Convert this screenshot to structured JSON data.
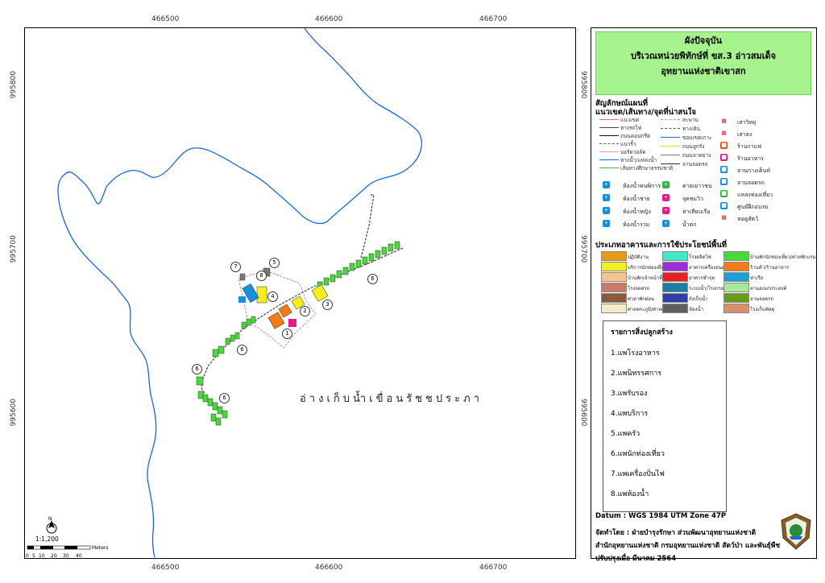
{
  "title": {
    "line1": "ผังปัจจุบัน",
    "line2": "บริเวณหน่วยพิทักษ์ที่ ขส.3 อ่าวสมเด็จ",
    "line3": "อุทยานแห่งชาติเขาสก"
  },
  "coords": {
    "top": [
      "466500",
      "466600",
      "466700"
    ],
    "bottom": [
      "466500",
      "466600",
      "466700"
    ],
    "left": [
      "995800",
      "995700",
      "995600"
    ],
    "right": [
      "995800",
      "995700",
      "995600"
    ]
  },
  "legend": {
    "heading": "สัญลักษณ์แผนที่",
    "subheading": "แนวเขต/เส้นทาง/จุดที่น่าสนใจ",
    "lines_left": [
      {
        "label": "แนวเขต",
        "color": "#d9707a"
      },
      {
        "label": "ทางรถไฟ",
        "color": "#444444"
      },
      {
        "label": "ถนนคอนกรีต",
        "color": "#111111"
      },
      {
        "label": "แนวรั้ว",
        "color": "#555555"
      },
      {
        "label": "บอร์ดวอล์ค",
        "color": "#e3a0b0"
      },
      {
        "label": "ทางน้ำ/แหล่งน้ำ",
        "color": "#1a66d9"
      },
      {
        "label": "เส้นทางศึกษาธรรมชาติ",
        "color": "#39b54a"
      }
    ],
    "lines_right": [
      {
        "label": "สะพาน",
        "color": "#d98fa8"
      },
      {
        "label": "ทางเดิน",
        "color": "#555555"
      },
      {
        "label": "ขอบเขตเกาะ",
        "color": "#1a66d9"
      },
      {
        "label": "ถนนลูกรัง",
        "color": "#f2d21b"
      },
      {
        "label": "ถนนลาดยาง",
        "color": "#777777"
      },
      {
        "label": "ลานจอดรถ",
        "color": "#333333"
      }
    ],
    "poi_right_top": [
      {
        "label": "เสาวิทยุ",
        "icon": "radio-tower-icon",
        "color": "#ffffff"
      },
      {
        "label": "เสาธง",
        "icon": "flag-icon",
        "color": "#ffffff"
      },
      {
        "label": "ร้านกาแฟ",
        "icon": "coffee-icon",
        "color": "#e8541c"
      },
      {
        "label": "ร้านอาหาร",
        "icon": "restaurant-icon",
        "color": "#e8198b"
      },
      {
        "label": "ลานกางเต็นท์",
        "icon": "tent-icon",
        "color": "#1a8fd9"
      },
      {
        "label": "ลานจอดรถ",
        "icon": "parking-icon",
        "color": "#1a8fd9"
      },
      {
        "label": "แหล่งท่องเที่ยว",
        "icon": "attraction-icon",
        "color": "#39b54a"
      },
      {
        "label": "ศูนย์ฝึกอบรม",
        "icon": "training-icon",
        "color": "#1a8fd9"
      },
      {
        "label": "หอดูสัตว์",
        "icon": "watchtower-icon",
        "color": "#ffffff"
      }
    ],
    "poi_grid": [
      {
        "label": "ห้องน้ำคนพิการ",
        "icon": "accessible-toilet-icon",
        "color": "#1a8fd9"
      },
      {
        "label": "ค่ายเยาวชน",
        "icon": "youth-camp-icon",
        "color": "#39b54a"
      },
      {
        "label": "ห้องน้ำชาย",
        "icon": "male-toilet-icon",
        "color": "#1a8fd9"
      },
      {
        "label": "จุดชมวิว",
        "icon": "viewpoint-icon",
        "color": "#e8198b"
      },
      {
        "label": "ห้องน้ำหญิง",
        "icon": "female-toilet-icon",
        "color": "#1a8fd9"
      },
      {
        "label": "ท่าเทียบเรือ",
        "icon": "pier-icon",
        "color": "#e8198b"
      },
      {
        "label": "ห้องน้ำรวม",
        "icon": "shared-toilet-icon",
        "color": "#1a8fd9"
      },
      {
        "label": "น้ำตก",
        "icon": "waterfall-icon",
        "color": "#1a8fd9"
      }
    ],
    "landuse_heading": "ประเภทอาคารและการใช้ประโยชน์พื้นที่",
    "landuse": [
      {
        "label": "ปฏิบัติงาน",
        "color": "#e89a16"
      },
      {
        "label": "บริการนักท่องเที่ยว",
        "color": "#f5ee1e"
      },
      {
        "label": "บ้านพักเจ้าหน้าที่",
        "color": "#f4c48a"
      },
      {
        "label": "โรงจอดรถ",
        "color": "#c97a6a"
      },
      {
        "label": "ศาลาพักผ่อน",
        "color": "#8a5a3c"
      },
      {
        "label": "ศาลพระภูมิ/ศาลเจ้าที่",
        "color": "#f7ecc8"
      },
      {
        "label": "โรงผลิตไฟ",
        "color": "#3fe8c7"
      },
      {
        "label": "อาคารเครื่องยนต์",
        "color": "#9b30d9"
      },
      {
        "label": "อาคารชำรุด",
        "color": "#e82020"
      },
      {
        "label": "ระบบน้ำ/โรงกรองน้ำ",
        "color": "#1a7fa0"
      },
      {
        "label": "ถังเก็บน้ำ",
        "color": "#2a3fa8"
      },
      {
        "label": "ห้องน้ำ",
        "color": "#606060"
      },
      {
        "label": "บ้านพักนักท่องเที่ยว/ค่ายพักแรม",
        "color": "#4ad93a"
      },
      {
        "label": "ร้านค้า/ร้านอาหาร",
        "color": "#f57a1a"
      },
      {
        "label": "ท่าเรือ",
        "color": "#1aa0d9"
      },
      {
        "label": "ลานอเนกประสงค์",
        "color": "#a8e89a"
      },
      {
        "label": "ลานจอดรถ",
        "color": "#6a9a1a"
      },
      {
        "label": "โรงเก็บพัสดุ",
        "color": "#d98f6a"
      }
    ]
  },
  "building_list": {
    "title": "รายการสิ่งปลูกสร้าง",
    "items": [
      "1.แพโรงอาหาร",
      "2.แพนิทรรศการ",
      "3.แพรับรอง",
      "4.แพบริการ",
      "5.แพครัว",
      "6.แพนักท่องเที่ยว",
      "7.แพเครื่องปั่นไฟ",
      "8.แพห้องน้ำ"
    ]
  },
  "footer": {
    "datum": "Datum  : WGS 1984 UTM Zone 47P",
    "made_by": "จัดทำโดย  : ฝ่ายบำรุงรักษา ส่วนพัฒนาอุทยานแห่งชาติ",
    "office": "สำนักอุทยานแห่งชาติ  กรมอุทยานแห่งชาติ สัตว์ป่า และพันธุ์พืช",
    "updated": "ปรับปรุงเมื่อ มีนาคม 2564"
  },
  "map": {
    "lake_label": "อ่างเก็บน้ำเขื่อนรัชชประภา",
    "scale_text": "1:1,200",
    "scale_labels": [
      "0",
      "5",
      "10",
      "20",
      "30",
      "40"
    ],
    "scale_unit": "Meters",
    "north": "N",
    "callouts": [
      "1",
      "2",
      "3",
      "4",
      "5",
      "6",
      "6",
      "6",
      "6",
      "7",
      "8"
    ]
  }
}
